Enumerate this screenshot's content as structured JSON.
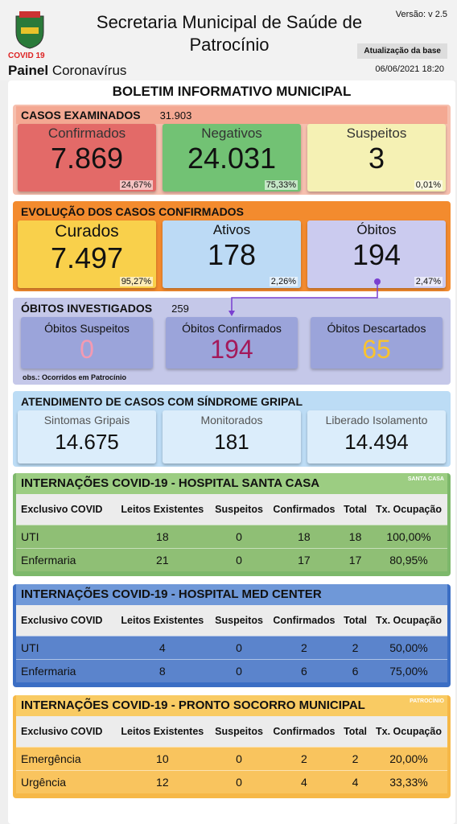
{
  "header": {
    "version": "Versão: v 2.5",
    "title": "Secretaria Municipal de Saúde de Patrocínio",
    "covid": "COVID 19",
    "painel_bold": "Painel",
    "painel": "Coronavírus",
    "update_label": "Atualização da base",
    "update_date": "06/06/2021 18:20"
  },
  "bulletin_title": "BOLETIM INFORMATIVO MUNICIPAL",
  "examined": {
    "title": "CASOS EXAMINADOS",
    "total": "31.903",
    "cards": [
      {
        "label": "Confirmados",
        "value": "7.869",
        "pct": "24,67%"
      },
      {
        "label": "Negativos",
        "value": "24.031",
        "pct": "75,33%"
      },
      {
        "label": "Suspeitos",
        "value": "3",
        "pct": "0,01%"
      }
    ]
  },
  "evolution": {
    "title": "EVOLUÇÃO DOS CASOS CONFIRMADOS",
    "cards": [
      {
        "label": "Curados",
        "value": "7.497",
        "pct": "95,27%"
      },
      {
        "label": "Ativos",
        "value": "178",
        "pct": "2,26%"
      },
      {
        "label": "Óbitos",
        "value": "194",
        "pct": "2,47%"
      }
    ]
  },
  "deaths": {
    "title": "ÓBITOS INVESTIGADOS",
    "total": "259",
    "cards": [
      {
        "label": "Óbitos Suspeitos",
        "value": "0"
      },
      {
        "label": "Óbitos Confirmados",
        "value": "194"
      },
      {
        "label": "Óbitos Descartados",
        "value": "65"
      }
    ],
    "note": "obs.: Ocorridos em Patrocínio"
  },
  "flu": {
    "title": "ATENDIMENTO DE CASOS COM SÍNDROME GRIPAL",
    "cards": [
      {
        "label": "Sintomas Gripais",
        "value": "14.675"
      },
      {
        "label": "Monitorados",
        "value": "181"
      },
      {
        "label": "Liberado Isolamento",
        "value": "14.494"
      }
    ]
  },
  "hospitals": [
    {
      "title": "INTERNAÇÕES COVID-19 - HOSPITAL SANTA CASA",
      "logo": "SANTA CASA",
      "columns": [
        "Exclusivo COVID",
        "Leitos Existentes",
        "Suspeitos",
        "Confirmados",
        "Total",
        "Tx. Ocupação"
      ],
      "rows": [
        [
          "UTI",
          "18",
          "0",
          "18",
          "18",
          "100,00%"
        ],
        [
          "Enfermaria",
          "21",
          "0",
          "17",
          "17",
          "80,95%"
        ]
      ]
    },
    {
      "title": "INTERNAÇÕES COVID-19 - HOSPITAL MED CENTER",
      "columns": [
        "Exclusivo COVID",
        "Leitos Existentes",
        "Suspeitos",
        "Confirmados",
        "Total",
        "Tx. Ocupação"
      ],
      "rows": [
        [
          "UTI",
          "4",
          "0",
          "2",
          "2",
          "50,00%"
        ],
        [
          "Enfermaria",
          "8",
          "0",
          "6",
          "6",
          "75,00%"
        ]
      ]
    },
    {
      "title": "INTERNAÇÕES COVID-19 - PRONTO SOCORRO MUNICIPAL",
      "logo": "PATROCÍNIO",
      "columns": [
        "Exclusivo COVID",
        "Leitos Existentes",
        "Suspeitos",
        "Confirmados",
        "Total",
        "Tx. Ocupação"
      ],
      "rows": [
        [
          "Emergência",
          "10",
          "0",
          "2",
          "2",
          "20,00%"
        ],
        [
          "Urgência",
          "12",
          "0",
          "4",
          "4",
          "33,33%"
        ]
      ]
    }
  ]
}
